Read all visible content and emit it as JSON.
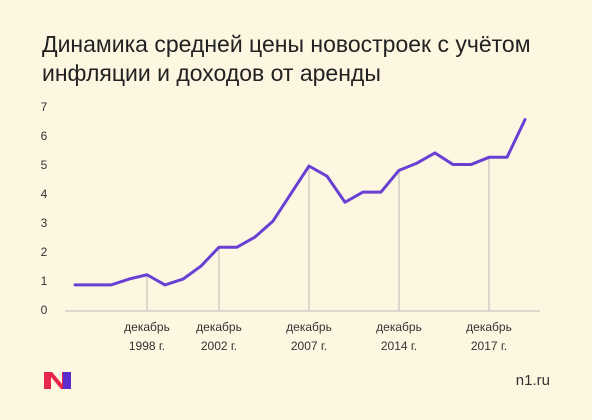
{
  "chart_data": {
    "type": "line",
    "title": "Динамика средней цены новостроек с учётом инфляции и доходов от аренды",
    "categories": [
      null,
      null,
      null,
      null,
      "декабрь\n1998 г.",
      null,
      null,
      null,
      "декабрь\n2002 г.",
      null,
      null,
      null,
      null,
      "декабрь\n2007 г.",
      null,
      null,
      null,
      null,
      "декабрь\n2014 г.",
      null,
      null,
      null,
      null,
      "декабрь\n2017 г.",
      null,
      null
    ],
    "series": [
      {
        "color": "#6a3fd4",
        "values": [
          0.9,
          0.9,
          0.9,
          1.1,
          1.25,
          0.9,
          1.1,
          1.55,
          2.2,
          2.2,
          2.55,
          3.1,
          4.05,
          5.0,
          4.65,
          3.75,
          4.1,
          4.1,
          4.85,
          5.1,
          5.45,
          5.05,
          5.05,
          5.3,
          5.3,
          6.6
        ]
      }
    ],
    "ylim": [
      0,
      7
    ],
    "yticks": [
      0,
      1,
      2,
      3,
      4,
      5,
      6,
      7
    ],
    "grid": false
  },
  "footer": {
    "site": "n1.ru"
  }
}
